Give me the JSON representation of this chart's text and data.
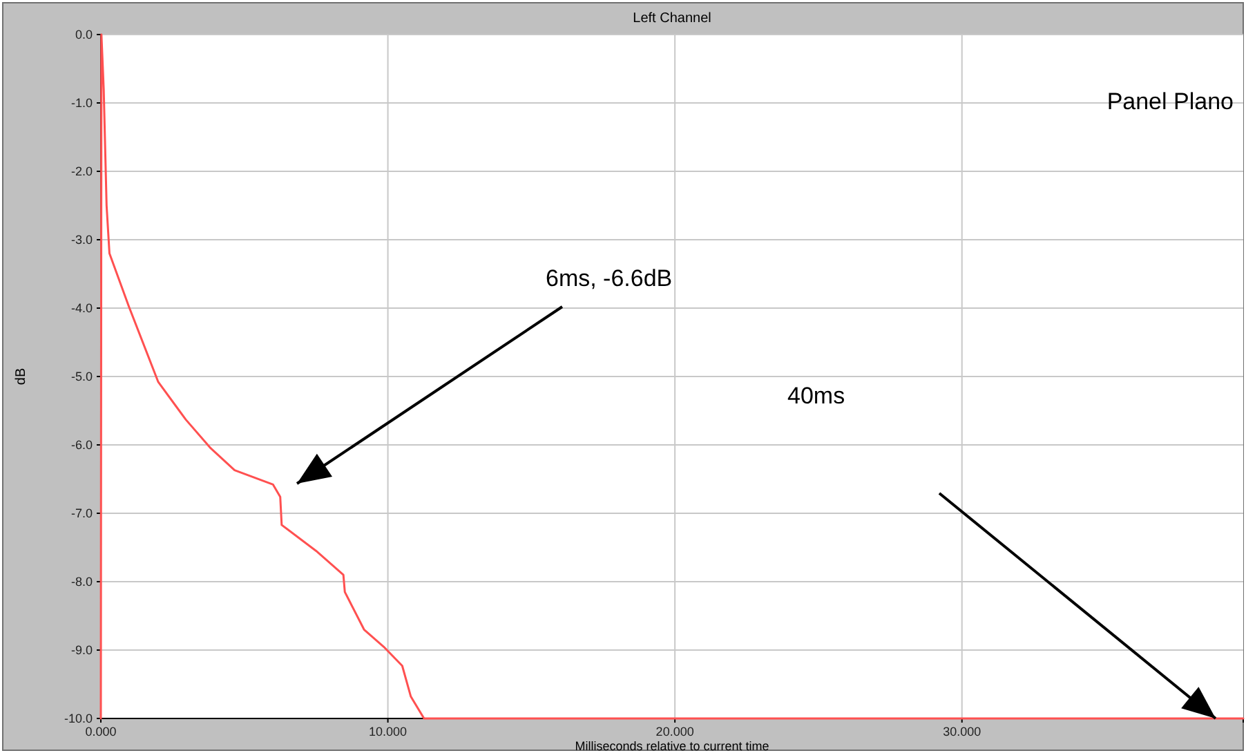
{
  "chart_data": {
    "type": "line",
    "title": "Left Channel",
    "xlabel": "Milliseconds relative to current time",
    "ylabel": "dB",
    "x": [
      0,
      0.02,
      0.1,
      0.2,
      0.3,
      0.97,
      2.0,
      2.96,
      3.83,
      4.66,
      6.0,
      6.25,
      6.3,
      7.5,
      8.45,
      8.5,
      9.17,
      9.85,
      10.5,
      10.8,
      11.26,
      39.8
    ],
    "series": [
      {
        "color": "#ff5050",
        "values": [
          -10,
          0,
          -0.8,
          -2.5,
          -3.2,
          -3.97,
          -5.08,
          -5.63,
          -6.05,
          -6.37,
          -6.58,
          -6.76,
          -7.17,
          -7.55,
          -7.9,
          -8.15,
          -8.7,
          -8.95,
          -9.23,
          -9.68,
          -10,
          -10
        ]
      }
    ],
    "xlim": [
      0,
      39.8
    ],
    "xticks": [
      {
        "value": 0,
        "label": "0.000"
      },
      {
        "value": 10,
        "label": "10.000"
      },
      {
        "value": 20,
        "label": "20.000"
      },
      {
        "value": 30,
        "label": "30.000"
      }
    ],
    "ylim": [
      -10,
      0
    ],
    "yticks": [
      {
        "value": 0,
        "label": "0.0"
      },
      {
        "value": -1,
        "label": "-1.0"
      },
      {
        "value": -2,
        "label": "-2.0"
      },
      {
        "value": -3,
        "label": "-3.0"
      },
      {
        "value": -4,
        "label": "-4.0"
      },
      {
        "value": -5,
        "label": "-5.0"
      },
      {
        "value": -6,
        "label": "-6.0"
      },
      {
        "value": -7,
        "label": "-7.0"
      },
      {
        "value": -8,
        "label": "-8.0"
      },
      {
        "value": -9,
        "label": "-9.0"
      },
      {
        "value": -10,
        "label": "-10.0"
      }
    ],
    "grid": true,
    "marker": "none",
    "line_style": "solid",
    "annotations": [
      "Panel Plano",
      "6ms, -6.6dB",
      "40ms"
    ]
  }
}
